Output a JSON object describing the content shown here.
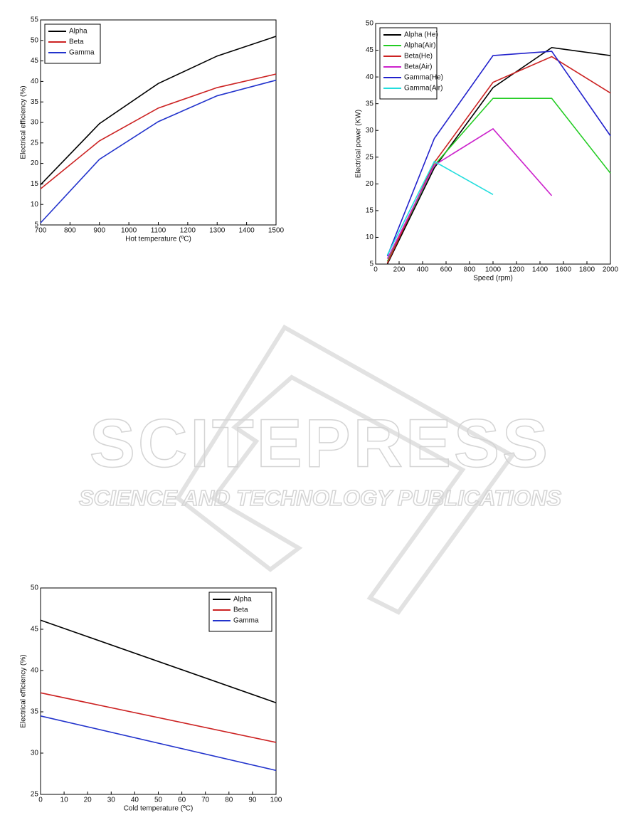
{
  "chart_data": [
    {
      "type": "line",
      "x_label": "Hot temperature (ºC)",
      "y_label": "Electrical efficiency (%)",
      "x": [
        700,
        900,
        1100,
        1300,
        1500
      ],
      "series": [
        {
          "name": "Alpha",
          "color": "#000000",
          "values": [
            14.8,
            29.7,
            39.5,
            46.2,
            51
          ]
        },
        {
          "name": "Beta",
          "color": "#cc2222",
          "values": [
            13.8,
            25.5,
            33.5,
            38.5,
            41.8
          ]
        },
        {
          "name": "Gamma",
          "color": "#2233cc",
          "values": [
            5.5,
            21,
            30.2,
            36.5,
            40.3
          ]
        }
      ],
      "xlim": [
        700,
        1500
      ],
      "xticks": [
        700,
        800,
        900,
        1000,
        1100,
        1200,
        1300,
        1400,
        1500
      ],
      "ylim": [
        5,
        55
      ],
      "yticks": [
        5,
        10,
        15,
        20,
        25,
        30,
        35,
        40,
        45,
        50,
        55
      ],
      "legend": "upper left"
    },
    {
      "type": "line",
      "x_label": "Speed (rpm)",
      "y_label": "Electrical power (KW)",
      "x": [
        100,
        500,
        1000,
        1500,
        2000
      ],
      "series": [
        {
          "name": "Alpha (He)",
          "color": "#000000",
          "values": [
            5,
            23,
            38,
            45.5,
            44
          ]
        },
        {
          "name": "Alpha(Air)",
          "color": "#22cc22",
          "values": [
            5.5,
            23.5,
            36,
            36,
            22
          ]
        },
        {
          "name": "Beta(He)",
          "color": "#cc2222",
          "values": [
            5.2,
            24,
            39,
            43.8,
            37
          ]
        },
        {
          "name": "Beta(Air)",
          "color": "#cc22cc",
          "values": [
            6,
            23.5,
            30.3,
            17.8,
            null
          ]
        },
        {
          "name": "Gamma(He)",
          "color": "#2222cc",
          "values": [
            6.5,
            28.5,
            44,
            44.8,
            29
          ]
        },
        {
          "name": "Gamma(Air)",
          "color": "#22dddd",
          "values": [
            6.7,
            24.2,
            18,
            null,
            null
          ]
        }
      ],
      "xlim": [
        0,
        2000
      ],
      "xticks": [
        0,
        200,
        400,
        600,
        800,
        1000,
        1200,
        1400,
        1600,
        1800,
        2000
      ],
      "ylim": [
        5,
        50
      ],
      "yticks": [
        5,
        10,
        15,
        20,
        25,
        30,
        35,
        40,
        45,
        50
      ],
      "legend": "upper left"
    },
    {
      "type": "line",
      "x_label": "Cold temperature (ºC)",
      "y_label": "Electrical efficiency (%)",
      "x": [
        0,
        100
      ],
      "series": [
        {
          "name": "Alpha",
          "color": "#000000",
          "values": [
            46.1,
            36.1
          ]
        },
        {
          "name": "Beta",
          "color": "#cc2222",
          "values": [
            37.3,
            31.3
          ]
        },
        {
          "name": "Gamma",
          "color": "#2233cc",
          "values": [
            34.5,
            27.9
          ]
        }
      ],
      "xlim": [
        0,
        100
      ],
      "xticks": [
        0,
        10,
        20,
        30,
        40,
        50,
        60,
        70,
        80,
        90,
        100
      ],
      "ylim": [
        25,
        50
      ],
      "yticks": [
        25,
        30,
        35,
        40,
        45,
        50
      ],
      "legend": "upper right"
    }
  ],
  "watermark": {
    "title": "SCITEPRESS",
    "subtitle": "SCIENCE AND TECHNOLOGY PUBLICATIONS"
  }
}
